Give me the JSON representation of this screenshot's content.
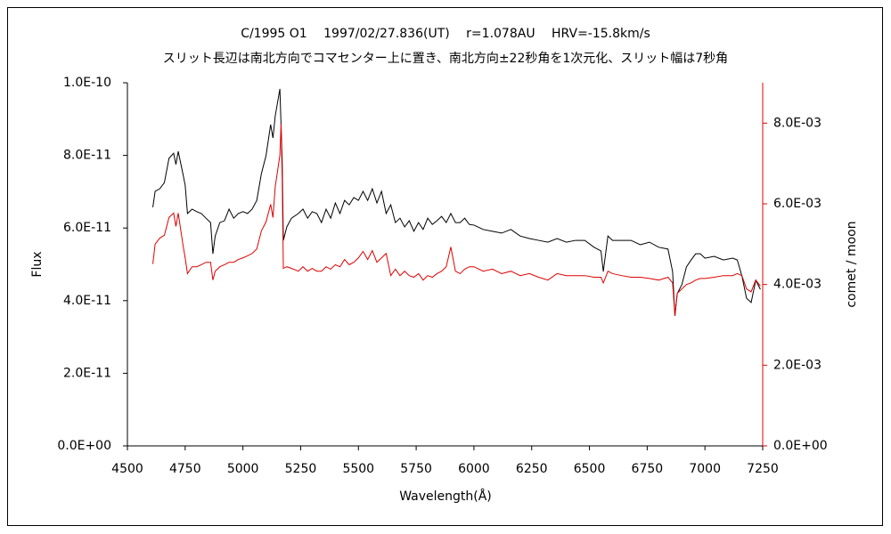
{
  "chart_data": {
    "type": "line",
    "title": "C/1995 O1　 1997/02/27.836(UT)　 r=1.078AU　 HRV=-15.8km/s",
    "subtitle": "スリット長辺は南北方向でコマセンター上に置き、南北方向±22秒角を1次元化、スリット幅は7秒角",
    "x_label": "Wavelength(Å)",
    "y_label": "Flux",
    "y2_label": "comet / moon",
    "y2_color": "#e00000",
    "xlim": [
      4500,
      7250
    ],
    "xticks": [
      4500,
      4750,
      5000,
      5250,
      5500,
      5750,
      6000,
      6250,
      6500,
      6750,
      7000,
      7250
    ],
    "ylim": [
      0,
      1e-10
    ],
    "yticks": [
      {
        "value": 0,
        "label": "0.0E+00"
      },
      {
        "value": 2e-11,
        "label": "2.0E-11"
      },
      {
        "value": 4e-11,
        "label": "4.0E-11"
      },
      {
        "value": 6e-11,
        "label": "6.0E-11"
      },
      {
        "value": 8e-11,
        "label": "8.0E-11"
      },
      {
        "value": 1e-10,
        "label": "1.0E-10"
      }
    ],
    "y2lim": [
      0,
      0.009
    ],
    "y2ticks": [
      {
        "value": 0,
        "label": "0.0E+00"
      },
      {
        "value": 0.002,
        "label": "2.0E-03"
      },
      {
        "value": 0.004,
        "label": "4.0E-03"
      },
      {
        "value": 0.006,
        "label": "6.0E-03"
      },
      {
        "value": 0.008,
        "label": "8.0E-03"
      }
    ],
    "grid": false,
    "x": [
      4610,
      4620,
      4640,
      4660,
      4680,
      4700,
      4710,
      4720,
      4740,
      4750,
      4760,
      4780,
      4800,
      4820,
      4840,
      4860,
      4870,
      4880,
      4900,
      4920,
      4940,
      4960,
      4980,
      5000,
      5020,
      5040,
      5060,
      5080,
      5100,
      5120,
      5130,
      5140,
      5160,
      5165,
      5170,
      5175,
      5190,
      5210,
      5240,
      5260,
      5280,
      5300,
      5320,
      5340,
      5360,
      5380,
      5400,
      5420,
      5440,
      5460,
      5480,
      5500,
      5520,
      5540,
      5560,
      5580,
      5600,
      5620,
      5640,
      5660,
      5680,
      5700,
      5720,
      5740,
      5760,
      5780,
      5800,
      5820,
      5840,
      5860,
      5880,
      5900,
      5920,
      5940,
      5960,
      5980,
      6000,
      6040,
      6080,
      6120,
      6160,
      6200,
      6240,
      6280,
      6320,
      6360,
      6400,
      6440,
      6480,
      6520,
      6550,
      6560,
      6570,
      6580,
      6600,
      6640,
      6680,
      6720,
      6760,
      6800,
      6840,
      6860,
      6870,
      6880,
      6900,
      6920,
      6940,
      6960,
      6980,
      7000,
      7040,
      7080,
      7120,
      7140,
      7160,
      7180,
      7200,
      7220,
      7240
    ],
    "series": [
      {
        "color": "#000000",
        "axis": "y",
        "values": [
          6.57e-11,
          7.01e-11,
          7.08e-11,
          7.25e-11,
          7.92e-11,
          8.06e-11,
          7.75e-11,
          8.11e-11,
          7.5e-11,
          7.18e-11,
          6.4e-11,
          6.52e-11,
          6.45e-11,
          6.4e-11,
          6.27e-11,
          6.15e-11,
          5.29e-11,
          5.78e-11,
          6.15e-11,
          6.2e-11,
          6.52e-11,
          6.27e-11,
          6.4e-11,
          6.45e-11,
          6.4e-11,
          6.52e-11,
          6.76e-11,
          7.5e-11,
          7.99e-11,
          8.85e-11,
          8.48e-11,
          9.09e-11,
          9.83e-11,
          8.85e-11,
          7.87e-11,
          5.66e-11,
          6.03e-11,
          6.27e-11,
          6.4e-11,
          6.52e-11,
          6.27e-11,
          6.45e-11,
          6.4e-11,
          6.15e-11,
          6.52e-11,
          6.27e-11,
          6.69e-11,
          6.4e-11,
          6.76e-11,
          6.64e-11,
          6.84e-11,
          6.76e-11,
          7.01e-11,
          6.76e-11,
          7.08e-11,
          6.69e-11,
          7.01e-11,
          6.4e-11,
          6.64e-11,
          6.15e-11,
          6.27e-11,
          6.03e-11,
          6.2e-11,
          5.91e-11,
          6.15e-11,
          5.96e-11,
          6.27e-11,
          6.1e-11,
          6.2e-11,
          6.32e-11,
          6.15e-11,
          6.4e-11,
          6.15e-11,
          6.15e-11,
          6.27e-11,
          6.1e-11,
          6.08e-11,
          5.96e-11,
          5.91e-11,
          5.86e-11,
          5.96e-11,
          5.78e-11,
          5.71e-11,
          5.66e-11,
          5.61e-11,
          5.71e-11,
          5.61e-11,
          5.66e-11,
          5.66e-11,
          5.47e-11,
          5.37e-11,
          4.8e-11,
          5.29e-11,
          5.78e-11,
          5.66e-11,
          5.66e-11,
          5.66e-11,
          5.54e-11,
          5.61e-11,
          5.47e-11,
          5.42e-11,
          4.8e-11,
          3.58e-11,
          4.19e-11,
          4.44e-11,
          4.93e-11,
          5.12e-11,
          5.29e-11,
          5.29e-11,
          5.17e-11,
          5.22e-11,
          5.12e-11,
          5.17e-11,
          5.12e-11,
          4.68e-11,
          4.07e-11,
          3.95e-11,
          4.56e-11,
          4.31e-11
        ]
      },
      {
        "color": "#e00000",
        "axis": "y2",
        "values": [
          0.00451,
          0.005,
          0.00515,
          0.00522,
          0.00566,
          0.00577,
          0.00544,
          0.00577,
          0.005,
          0.00466,
          0.00427,
          0.00444,
          0.00444,
          0.00449,
          0.00455,
          0.00455,
          0.00411,
          0.00433,
          0.00444,
          0.00449,
          0.00455,
          0.00455,
          0.00462,
          0.00466,
          0.00471,
          0.00477,
          0.00488,
          0.00533,
          0.00555,
          0.00599,
          0.00566,
          0.00643,
          0.0072,
          0.00798,
          0.00665,
          0.0044,
          0.00444,
          0.0044,
          0.00433,
          0.00444,
          0.00433,
          0.0044,
          0.00433,
          0.00433,
          0.00444,
          0.00438,
          0.00449,
          0.00444,
          0.00462,
          0.00449,
          0.00455,
          0.00466,
          0.00482,
          0.00462,
          0.00484,
          0.00455,
          0.00466,
          0.00477,
          0.00422,
          0.00438,
          0.00422,
          0.00433,
          0.00422,
          0.00418,
          0.00427,
          0.00411,
          0.00422,
          0.00418,
          0.00427,
          0.00433,
          0.00444,
          0.00493,
          0.00433,
          0.00427,
          0.00438,
          0.00444,
          0.00444,
          0.00433,
          0.00438,
          0.00427,
          0.00433,
          0.00422,
          0.00427,
          0.00418,
          0.00411,
          0.00427,
          0.00422,
          0.00422,
          0.00422,
          0.00418,
          0.00418,
          0.00404,
          0.00418,
          0.00433,
          0.00427,
          0.00422,
          0.00418,
          0.00418,
          0.00415,
          0.00411,
          0.00418,
          0.00404,
          0.00323,
          0.00378,
          0.00389,
          0.004,
          0.00404,
          0.00411,
          0.00415,
          0.00415,
          0.00418,
          0.00422,
          0.00422,
          0.00427,
          0.00422,
          0.00389,
          0.00382,
          0.00411,
          0.00396
        ]
      }
    ]
  }
}
